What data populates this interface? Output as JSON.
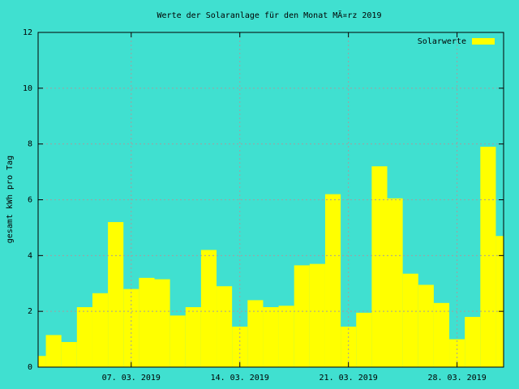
{
  "chart_data": {
    "type": "bar",
    "title": "Werte der Solaranlage für den Monat MÃ¤rz 2019",
    "y_label": "gesamt kWh pro Tag",
    "x": [
      "2019-03-01",
      "2019-03-02",
      "2019-03-03",
      "2019-03-04",
      "2019-03-05",
      "2019-03-06",
      "2019-03-07",
      "2019-03-08",
      "2019-03-09",
      "2019-03-10",
      "2019-03-11",
      "2019-03-12",
      "2019-03-13",
      "2019-03-14",
      "2019-03-15",
      "2019-03-16",
      "2019-03-17",
      "2019-03-18",
      "2019-03-19",
      "2019-03-20",
      "2019-03-21",
      "2019-03-22",
      "2019-03-23",
      "2019-03-24",
      "2019-03-25",
      "2019-03-26",
      "2019-03-27",
      "2019-03-28",
      "2019-03-29",
      "2019-03-30",
      "2019-03-31"
    ],
    "series": [
      {
        "name": "Solarwerte",
        "color": "#ffff00",
        "values": [
          0.4,
          1.15,
          0.9,
          2.15,
          2.65,
          5.2,
          2.8,
          3.2,
          3.15,
          1.85,
          2.15,
          4.2,
          2.9,
          1.45,
          2.4,
          2.15,
          2.2,
          3.65,
          3.7,
          6.2,
          1.45,
          1.95,
          7.2,
          6.05,
          3.35,
          2.95,
          2.3,
          1.0,
          1.8,
          7.9,
          4.7
        ]
      }
    ],
    "xlim": [
      "2019-03-01",
      "2019-03-31"
    ],
    "xticks": [
      {
        "value": "2019-03-07",
        "label": "07. 03. 2019"
      },
      {
        "value": "2019-03-14",
        "label": "14. 03. 2019"
      },
      {
        "value": "2019-03-21",
        "label": "21. 03. 2019"
      },
      {
        "value": "2019-03-28",
        "label": "28. 03. 2019"
      }
    ],
    "ylim": [
      0,
      12
    ],
    "yticks": [
      0,
      2,
      4,
      6,
      8,
      10,
      12
    ],
    "grid": true,
    "legend": "top-right",
    "background": "#40e0d0"
  }
}
